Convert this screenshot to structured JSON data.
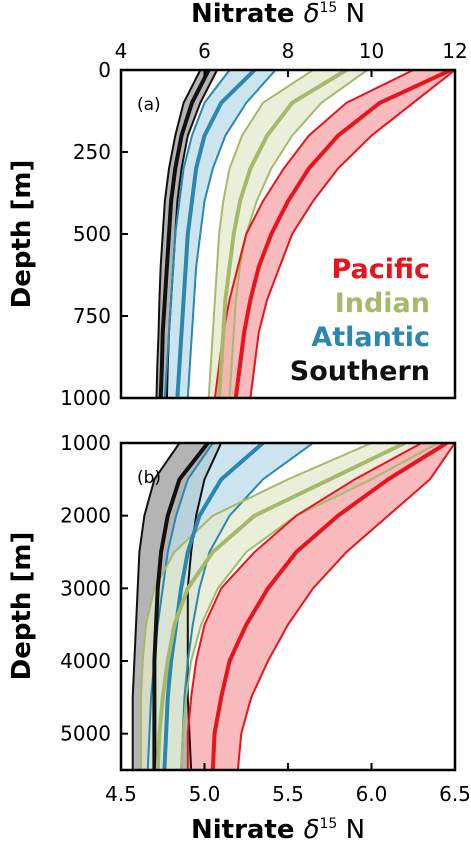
{
  "chart_data": [
    {
      "type": "line",
      "panel_label": "(a)",
      "xlabel": "Nitrate δ15N",
      "xlabel_main": "Nitrate ",
      "xlabel_delta": "δ",
      "xlabel_sup": "15",
      "xlabel_tail": " N",
      "ylabel": "Depth [m]",
      "xlim": [
        4,
        12
      ],
      "ylim": [
        0,
        1000
      ],
      "y_inverted": true,
      "x_axis_position": "top",
      "xticks": [
        "4",
        "6",
        "8",
        "10",
        "12"
      ],
      "yticks": [
        "0",
        "250",
        "500",
        "750",
        "1000"
      ],
      "grid": false,
      "legend": {
        "placement": "lower-right",
        "entries": [
          "Pacific",
          "Indian",
          "Atlantic",
          "Southern"
        ]
      },
      "series": [
        {
          "name": "Pacific",
          "color": "#e8131c",
          "fill": "#f5a3a6",
          "depth": [
            0,
            100,
            200,
            300,
            400,
            500,
            600,
            700,
            800,
            900,
            1000
          ],
          "mean": [
            11.9,
            10.2,
            9.2,
            8.5,
            8.0,
            7.6,
            7.3,
            7.1,
            6.95,
            6.85,
            6.75
          ],
          "lower": [
            11.0,
            9.4,
            8.5,
            7.9,
            7.4,
            7.0,
            6.8,
            6.6,
            6.45,
            6.35,
            6.25
          ],
          "upper": [
            12.0,
            11.0,
            10.0,
            9.2,
            8.6,
            8.1,
            7.8,
            7.5,
            7.3,
            7.2,
            7.1
          ]
        },
        {
          "name": "Indian",
          "color": "#a6b96b",
          "fill": "#e4e9cd",
          "depth": [
            0,
            100,
            200,
            300,
            400,
            500,
            600,
            700,
            800,
            900,
            1000
          ],
          "mean": [
            9.4,
            8.1,
            7.5,
            7.1,
            6.85,
            6.7,
            6.6,
            6.5,
            6.45,
            6.4,
            6.35
          ],
          "lower": [
            8.6,
            7.4,
            6.9,
            6.6,
            6.45,
            6.35,
            6.3,
            6.25,
            6.2,
            6.15,
            6.1
          ],
          "upper": [
            9.9,
            8.8,
            8.1,
            7.6,
            7.25,
            7.0,
            6.85,
            6.75,
            6.7,
            6.65,
            6.6
          ]
        },
        {
          "name": "Atlantic",
          "color": "#2b87ad",
          "fill": "#b9dbe8",
          "depth": [
            0,
            100,
            200,
            300,
            400,
            500,
            600,
            700,
            800,
            900,
            1000
          ],
          "mean": [
            7.2,
            6.4,
            6.0,
            5.8,
            5.7,
            5.6,
            5.55,
            5.5,
            5.45,
            5.4,
            5.35
          ],
          "lower": [
            6.6,
            6.0,
            5.7,
            5.5,
            5.4,
            5.3,
            5.25,
            5.2,
            5.15,
            5.1,
            5.05
          ],
          "upper": [
            7.7,
            7.0,
            6.5,
            6.2,
            6.0,
            5.9,
            5.8,
            5.75,
            5.7,
            5.65,
            5.6
          ]
        },
        {
          "name": "Southern",
          "color": "#111111",
          "fill": "#9b9b9b",
          "depth": [
            0,
            100,
            200,
            300,
            400,
            500,
            600,
            700,
            800,
            900,
            1000
          ],
          "mean": [
            6.1,
            5.7,
            5.45,
            5.3,
            5.2,
            5.15,
            5.1,
            5.05,
            5.0,
            4.98,
            4.95
          ],
          "lower": [
            5.9,
            5.5,
            5.3,
            5.15,
            5.05,
            5.0,
            4.95,
            4.92,
            4.9,
            4.87,
            4.85
          ],
          "upper": [
            6.3,
            5.9,
            5.6,
            5.45,
            5.35,
            5.3,
            5.25,
            5.2,
            5.15,
            5.12,
            5.1
          ]
        }
      ]
    },
    {
      "type": "line",
      "panel_label": "(b)",
      "xlabel": "Nitrate δ15N",
      "xlabel_main": "Nitrate ",
      "xlabel_delta": "δ",
      "xlabel_sup": "15",
      "xlabel_tail": " N",
      "ylabel": "Depth [m]",
      "xlim": [
        4.5,
        6.5
      ],
      "ylim": [
        1000,
        5500
      ],
      "y_inverted": true,
      "x_axis_position": "bottom",
      "xticks": [
        "4.5",
        "5.0",
        "5.5",
        "6.0",
        "6.5"
      ],
      "yticks": [
        "1000",
        "2000",
        "3000",
        "4000",
        "5000"
      ],
      "grid": false,
      "series": [
        {
          "name": "Pacific",
          "color": "#e8131c",
          "fill": "#f5a3a6",
          "depth": [
            1000,
            1500,
            2000,
            2500,
            3000,
            3500,
            4000,
            4500,
            5000,
            5500
          ],
          "mean": [
            6.45,
            6.1,
            5.8,
            5.55,
            5.38,
            5.25,
            5.15,
            5.1,
            5.06,
            5.05
          ],
          "lower": [
            6.3,
            5.9,
            5.55,
            5.3,
            5.1,
            5.0,
            4.95,
            4.92,
            4.9,
            4.9
          ],
          "upper": [
            6.5,
            6.35,
            6.1,
            5.85,
            5.65,
            5.5,
            5.38,
            5.28,
            5.22,
            5.2
          ]
        },
        {
          "name": "Indian",
          "color": "#a6b96b",
          "fill": "#e4e9cd",
          "depth": [
            1000,
            1500,
            2000,
            2500,
            3000,
            3500,
            4000,
            4500,
            5000,
            5500
          ],
          "mean": [
            6.2,
            5.75,
            5.3,
            5.05,
            4.9,
            4.82,
            4.78,
            4.75,
            4.73,
            4.72
          ],
          "lower": [
            6.0,
            5.5,
            5.05,
            4.82,
            4.7,
            4.65,
            4.63,
            4.62,
            4.62,
            4.62
          ],
          "upper": [
            6.4,
            6.0,
            5.55,
            5.25,
            5.08,
            4.98,
            4.92,
            4.89,
            4.87,
            4.86
          ]
        },
        {
          "name": "Atlantic",
          "color": "#2b87ad",
          "fill": "#b9dbe8",
          "depth": [
            1000,
            1500,
            2000,
            2500,
            3000,
            3500,
            4000,
            4500,
            5000,
            5500
          ],
          "mean": [
            5.35,
            5.1,
            4.97,
            4.9,
            4.86,
            4.83,
            4.8,
            4.78,
            4.77,
            4.76
          ],
          "lower": [
            5.05,
            4.9,
            4.83,
            4.78,
            4.75,
            4.72,
            4.7,
            4.68,
            4.67,
            4.66
          ],
          "upper": [
            5.65,
            5.35,
            5.15,
            5.03,
            4.97,
            4.93,
            4.9,
            4.88,
            4.87,
            4.86
          ]
        },
        {
          "name": "Southern",
          "color": "#111111",
          "fill": "#9b9b9b",
          "depth": [
            1000,
            1500,
            2000,
            2500,
            3000,
            3500,
            4000,
            4500,
            5000,
            5500
          ],
          "mean": [
            5.02,
            4.85,
            4.78,
            4.74,
            4.72,
            4.71,
            4.7,
            4.7,
            4.7,
            4.7
          ],
          "lower": [
            4.85,
            4.7,
            4.64,
            4.61,
            4.6,
            4.59,
            4.58,
            4.57,
            4.57,
            4.57
          ],
          "upper": [
            5.1,
            5.0,
            4.95,
            4.92,
            4.9,
            4.9,
            4.9,
            4.9,
            4.91,
            4.92
          ]
        }
      ]
    }
  ]
}
